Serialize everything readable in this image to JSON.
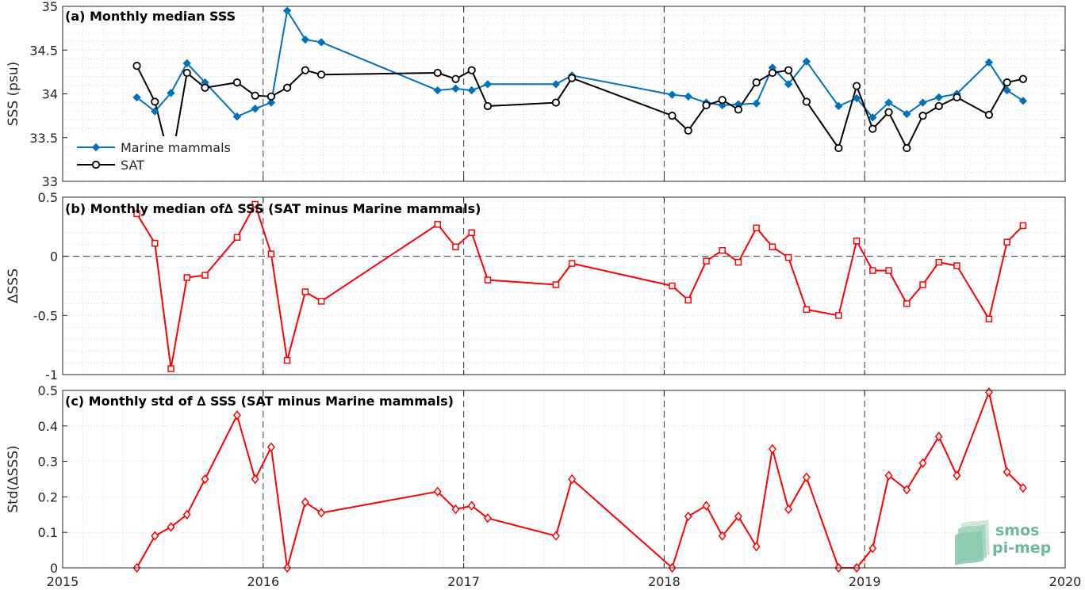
{
  "chart_data": [
    {
      "type": "line",
      "title": "(a) Monthly median SSS",
      "ylabel": "SSS (psu)",
      "xlim": [
        2015,
        2020
      ],
      "ylim": [
        33,
        35
      ],
      "yticks": [
        "33",
        "33.5",
        "34",
        "34.5",
        "35"
      ],
      "grid": "minor dotted",
      "legend": "left",
      "series": [
        {
          "name": "Marine mammals",
          "color": "#0072bd",
          "marker": "diamond",
          "x": [
            2015.37,
            2015.46,
            2015.54,
            2015.62,
            2015.71,
            2015.87,
            2015.96,
            2016.04,
            2016.12,
            2016.21,
            2016.29,
            2016.87,
            2016.96,
            2017.04,
            2017.12,
            2017.46,
            2017.54,
            2018.04,
            2018.12,
            2018.21,
            2018.29,
            2018.37,
            2018.46,
            2018.54,
            2018.62,
            2018.71,
            2018.87,
            2018.96,
            2019.04,
            2019.12,
            2019.21,
            2019.29,
            2019.37,
            2019.46,
            2019.62,
            2019.71,
            2019.79
          ],
          "y": [
            33.96,
            33.8,
            34.01,
            34.35,
            34.13,
            33.74,
            33.83,
            33.9,
            34.95,
            34.62,
            34.59,
            34.04,
            34.06,
            34.04,
            34.11,
            34.11,
            34.21,
            33.99,
            33.97,
            33.9,
            33.87,
            33.88,
            33.89,
            34.3,
            34.11,
            34.37,
            33.86,
            33.95,
            33.73,
            33.9,
            33.77,
            33.9,
            33.96,
            34.0,
            34.36,
            34.04,
            33.92
          ]
        },
        {
          "name": "SAT",
          "color": "#000000",
          "marker": "circle",
          "x": [
            2015.37,
            2015.46,
            2015.54,
            2015.62,
            2015.71,
            2015.87,
            2015.96,
            2016.04,
            2016.12,
            2016.21,
            2016.29,
            2016.87,
            2016.96,
            2017.04,
            2017.12,
            2017.46,
            2017.54,
            2018.04,
            2018.12,
            2018.21,
            2018.29,
            2018.37,
            2018.46,
            2018.54,
            2018.62,
            2018.71,
            2018.87,
            2018.96,
            2019.04,
            2019.12,
            2019.21,
            2019.29,
            2019.37,
            2019.46,
            2019.62,
            2019.71,
            2019.79
          ],
          "y": [
            34.32,
            33.91,
            33.18,
            34.24,
            34.07,
            34.13,
            33.98,
            33.97,
            34.07,
            34.27,
            34.22,
            34.24,
            34.17,
            34.27,
            33.86,
            33.9,
            34.18,
            33.75,
            33.58,
            33.87,
            33.93,
            33.82,
            34.13,
            34.24,
            34.27,
            33.91,
            33.38,
            34.09,
            33.6,
            33.79,
            33.38,
            33.75,
            33.86,
            33.96,
            33.76,
            34.13,
            34.17
          ]
        }
      ]
    },
    {
      "type": "line",
      "title": "(b) Monthly median of∆ SSS (SAT minus Marine mammals)",
      "ylabel": "∆SSS",
      "xlim": [
        2015,
        2020
      ],
      "ylim": [
        -1,
        0.5
      ],
      "yticks": [
        "-1",
        "-0.5",
        "0",
        "0.5"
      ],
      "zero_line": "dashed",
      "series": [
        {
          "name": "",
          "color": "#ff0000",
          "marker": "square",
          "x": [
            2015.37,
            2015.46,
            2015.54,
            2015.62,
            2015.71,
            2015.87,
            2015.96,
            2016.04,
            2016.12,
            2016.21,
            2016.29,
            2016.87,
            2016.96,
            2017.04,
            2017.12,
            2017.46,
            2017.54,
            2018.04,
            2018.12,
            2018.21,
            2018.29,
            2018.37,
            2018.46,
            2018.54,
            2018.62,
            2018.71,
            2018.87,
            2018.96,
            2019.04,
            2019.12,
            2019.21,
            2019.29,
            2019.37,
            2019.46,
            2019.62,
            2019.71,
            2019.79
          ],
          "y": [
            0.36,
            0.11,
            -0.95,
            -0.18,
            -0.16,
            0.16,
            0.44,
            0.02,
            -0.88,
            -0.3,
            -0.38,
            0.27,
            0.08,
            0.2,
            -0.2,
            -0.24,
            -0.06,
            -0.25,
            -0.37,
            -0.04,
            0.05,
            -0.05,
            0.24,
            0.08,
            -0.01,
            -0.45,
            -0.5,
            0.13,
            -0.12,
            -0.12,
            -0.4,
            -0.24,
            -0.05,
            -0.08,
            -0.53,
            0.12,
            0.26
          ]
        }
      ]
    },
    {
      "type": "line",
      "title": "(c) Monthly std of ∆ SSS (SAT minus Marine mammals)",
      "ylabel": "Std(∆SSS)",
      "xlim": [
        2015,
        2020
      ],
      "ylim": [
        0,
        0.5
      ],
      "yticks": [
        "0",
        "0.1",
        "0.2",
        "0.3",
        "0.4",
        "0.5"
      ],
      "xticks": [
        "2015",
        "2016",
        "2017",
        "2018",
        "2019",
        "2020"
      ],
      "series": [
        {
          "name": "",
          "color": "#ff0000",
          "marker": "diamond-open",
          "x": [
            2015.37,
            2015.46,
            2015.54,
            2015.62,
            2015.71,
            2015.87,
            2015.96,
            2016.04,
            2016.12,
            2016.21,
            2016.29,
            2016.87,
            2016.96,
            2017.04,
            2017.12,
            2017.46,
            2017.54,
            2018.04,
            2018.12,
            2018.21,
            2018.29,
            2018.37,
            2018.46,
            2018.54,
            2018.62,
            2018.71,
            2018.87,
            2018.96,
            2019.04,
            2019.12,
            2019.21,
            2019.29,
            2019.37,
            2019.46,
            2019.62,
            2019.71,
            2019.79
          ],
          "y": [
            0.0,
            0.09,
            0.115,
            0.15,
            0.25,
            0.43,
            0.25,
            0.34,
            0.0,
            0.185,
            0.155,
            0.215,
            0.165,
            0.175,
            0.14,
            0.09,
            0.25,
            0.0,
            0.145,
            0.175,
            0.09,
            0.145,
            0.06,
            0.335,
            0.165,
            0.255,
            0.0,
            0.0,
            0.055,
            0.26,
            0.22,
            0.295,
            0.37,
            0.26,
            0.495,
            0.27,
            0.225
          ]
        }
      ]
    }
  ],
  "logo": {
    "line1": "smos",
    "line2": "pi-mep"
  }
}
